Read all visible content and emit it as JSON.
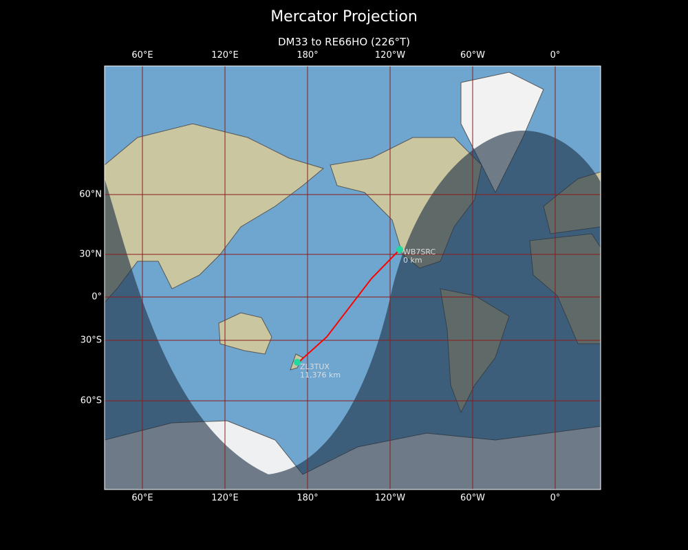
{
  "title": "Mercator Projection",
  "subtitle": "DM33 to RE66HO (226°T)",
  "map": {
    "projection": "Mercator",
    "lon_ticks": [
      "60°E",
      "120°E",
      "180°",
      "120°W",
      "60°W",
      "0°"
    ],
    "lat_ticks": [
      "60°N",
      "30°N",
      "0°",
      "30°S",
      "60°S"
    ],
    "colors": {
      "ocean": "#6fa6cf",
      "path": "#ff0000",
      "station": "#20d8a0",
      "night": "#1e3246",
      "grid": "#8b1a1a"
    },
    "stations": [
      {
        "call": "WB7SRC",
        "distance": "0 km",
        "lat": 33,
        "lon": -113
      },
      {
        "call": "ZL3TUX",
        "distance": "11,376 km",
        "lat": -43.5,
        "lon": 172.5
      }
    ],
    "path": {
      "from": "DM33",
      "to": "RE66HO",
      "bearing": "226°T"
    }
  }
}
